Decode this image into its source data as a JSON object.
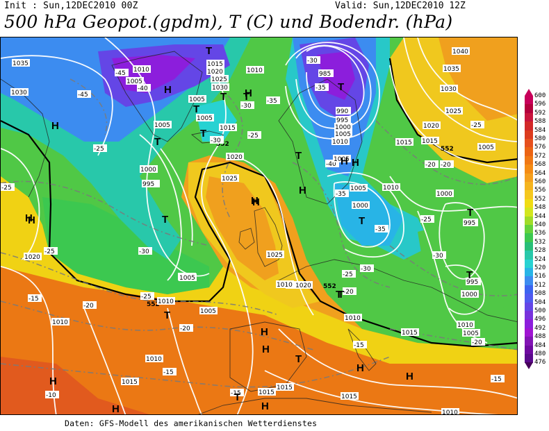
{
  "header": {
    "init_text": "Init : Sun,12DEC2010 00Z",
    "valid_text": "Valid: Sun,12DEC2010 12Z",
    "title": "500 hPa Geopot.(gpdm), T (C) und Bodendr. (hPa)"
  },
  "footer": {
    "source_text": "Daten: GFS-Modell des amerikanischen Wetterdienstes"
  },
  "colorbar": {
    "levels": [
      "600",
      "596",
      "592",
      "588",
      "584",
      "580",
      "576",
      "572",
      "568",
      "564",
      "560",
      "556",
      "552",
      "548",
      "544",
      "540",
      "536",
      "532",
      "528",
      "524",
      "520",
      "516",
      "512",
      "508",
      "504",
      "500",
      "496",
      "492",
      "488",
      "484",
      "480",
      "476"
    ],
    "colors": [
      "#c8005a",
      "#b4003c",
      "#c8143c",
      "#d22828",
      "#dc3c1e",
      "#e6501e",
      "#eb6414",
      "#f07814",
      "#f58c14",
      "#f5a01e",
      "#f5b41e",
      "#f5c81e",
      "#f0dc14",
      "#d2e61e",
      "#a0dc28",
      "#64d23c",
      "#3cc850",
      "#28be78",
      "#28c8aa",
      "#28d2d2",
      "#28b4e6",
      "#3c8cf0",
      "#3c64f0",
      "#505af0",
      "#6446e6",
      "#7832dc",
      "#8c1edc",
      "#a014d2",
      "#8214b4",
      "#6e0aa0",
      "#5a0a8c",
      "#46005a"
    ]
  },
  "map_labels": {
    "temps": [
      "-45",
      "-40",
      "-45",
      "-30",
      "-35",
      "-25",
      "-30",
      "-35",
      "-40",
      "-35",
      "-30",
      "-35",
      "-25",
      "-30",
      "-25",
      "-20",
      "-25",
      "-15",
      "-20",
      "-20",
      "-15",
      "-15",
      "-10",
      "-15",
      "-20",
      "-15",
      "-25",
      "-25",
      "-20",
      "-30",
      "-30",
      "-20",
      "-25",
      "-25"
    ],
    "pressures": [
      "1035",
      "1030",
      "1010",
      "1005",
      "1015",
      "1020",
      "1025",
      "1030",
      "1005",
      "1000",
      "995",
      "1000",
      "1005",
      "1010",
      "1015",
      "1020",
      "1025",
      "985",
      "990",
      "995",
      "1000",
      "1005",
      "1010",
      "1040",
      "1035",
      "1030",
      "1025",
      "1020",
      "1015",
      "1005",
      "1000",
      "995",
      "995",
      "1000",
      "1005",
      "1010",
      "1015",
      "1020",
      "1025",
      "1010",
      "1010",
      "1020",
      "1005",
      "1010",
      "1010",
      "1005",
      "1015",
      "1015",
      "1015",
      "1010",
      "1005",
      "1015",
      "1010",
      "1005",
      "1000",
      "1005",
      "1010",
      "1015",
      "1010"
    ],
    "centers": [
      "H",
      "H",
      "H",
      "T",
      "T",
      "T",
      "T",
      "T",
      "T",
      "T",
      "T",
      "H",
      "H",
      "H",
      "T",
      "T",
      "T",
      "H",
      "H",
      "T",
      "T",
      "H",
      "H",
      "T",
      "T",
      "H",
      "H",
      "T",
      "H",
      "H",
      "T",
      "H",
      "H",
      "H"
    ],
    "contour_552": [
      "552",
      "552",
      "552",
      "552"
    ]
  }
}
